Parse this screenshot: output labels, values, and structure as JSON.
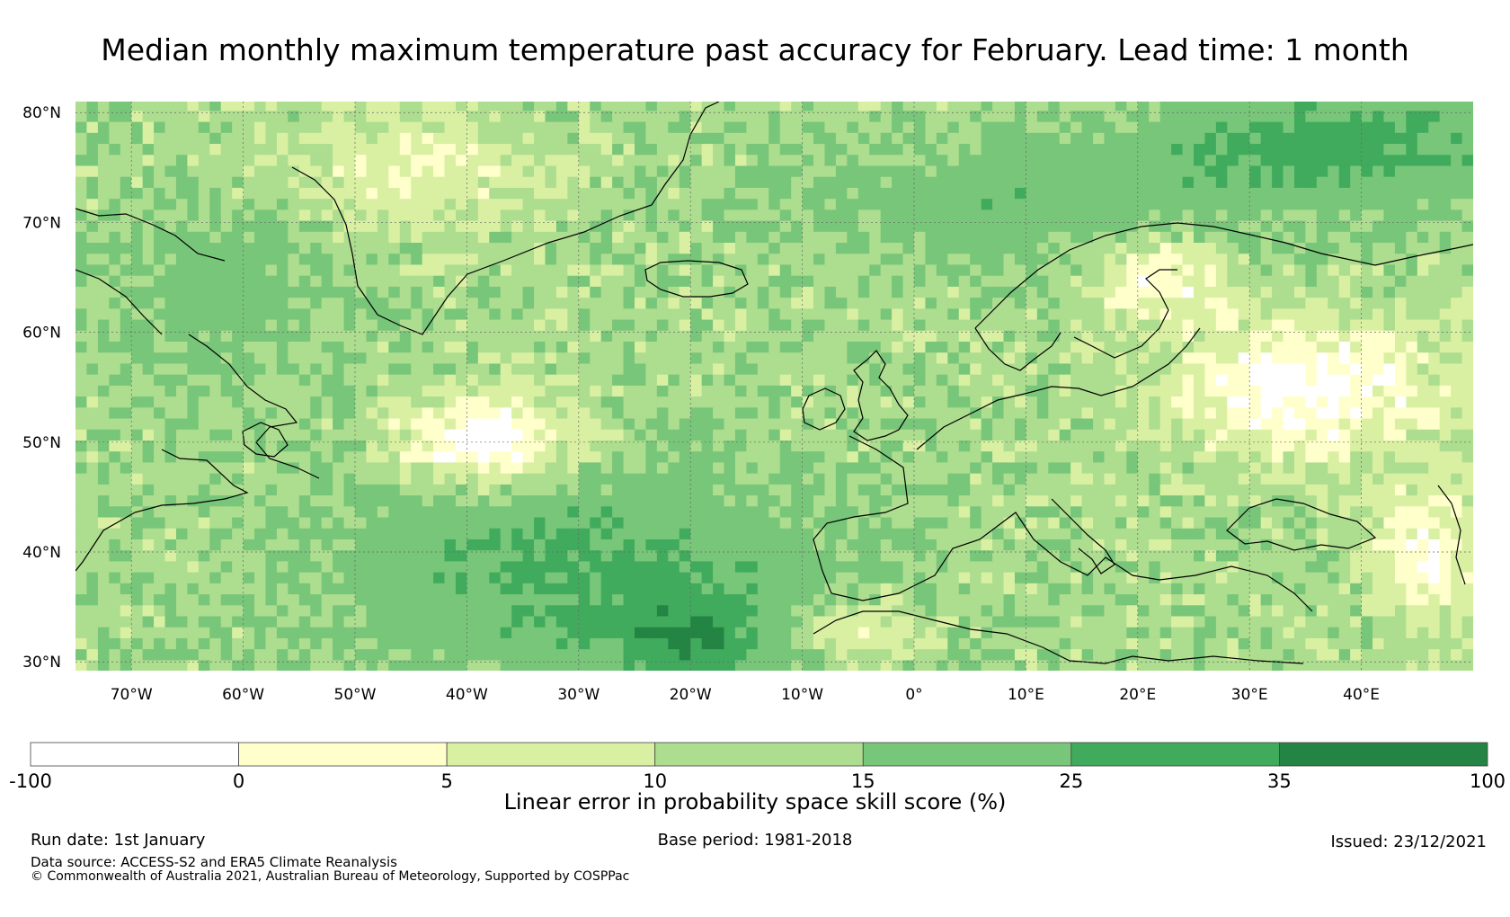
{
  "title": "Median monthly maximum temperature past accuracy for February. Lead time: 1 month",
  "map": {
    "lat_labels": [
      {
        "lat": 80,
        "label": "80°N"
      },
      {
        "lat": 70,
        "label": "70°N"
      },
      {
        "lat": 60,
        "label": "60°N"
      },
      {
        "lat": 50,
        "label": "50°N"
      },
      {
        "lat": 40,
        "label": "40°N"
      },
      {
        "lat": 30,
        "label": "30°N"
      }
    ],
    "lon_labels": [
      {
        "lon": -70,
        "label": "70°W"
      },
      {
        "lon": -60,
        "label": "60°W"
      },
      {
        "lon": -50,
        "label": "50°W"
      },
      {
        "lon": -40,
        "label": "40°W"
      },
      {
        "lon": -30,
        "label": "30°W"
      },
      {
        "lon": -20,
        "label": "20°W"
      },
      {
        "lon": -10,
        "label": "10°W"
      },
      {
        "lon": 0,
        "label": "0°"
      },
      {
        "lon": 10,
        "label": "10°E"
      },
      {
        "lon": 20,
        "label": "20°E"
      },
      {
        "lon": 30,
        "label": "30°E"
      },
      {
        "lon": 40,
        "label": "40°E"
      }
    ],
    "extent": {
      "lon_min": -75,
      "lon_max": 50,
      "lat_min": 29.2,
      "lat_max": 81
    }
  },
  "colorbar": {
    "title": "Linear error in probability space skill score (%)",
    "ticks": [
      "-100",
      "0",
      "5",
      "10",
      "15",
      "25",
      "35",
      "100"
    ],
    "bins": [
      {
        "from": -100,
        "to": 0,
        "color": "#ffffff"
      },
      {
        "from": 0,
        "to": 5,
        "color": "#ffffcc"
      },
      {
        "from": 5,
        "to": 10,
        "color": "#d9f0a3"
      },
      {
        "from": 10,
        "to": 15,
        "color": "#addd8e"
      },
      {
        "from": 15,
        "to": 25,
        "color": "#78c679"
      },
      {
        "from": 25,
        "to": 35,
        "color": "#41ab5d"
      },
      {
        "from": 35,
        "to": 100,
        "color": "#238443"
      }
    ]
  },
  "footer": {
    "run_date": "Run date: 1st January",
    "data_source": "Data source: ACCESS-S2 and ERA5 Climate Reanalysis",
    "copyright": "© Commonwealth of Australia 2021, Australian Bureau of Meteorology, Supported by COSPPac",
    "base_period": "Base period: 1981-2018",
    "issued": "Issued: 23/12/2021"
  }
}
